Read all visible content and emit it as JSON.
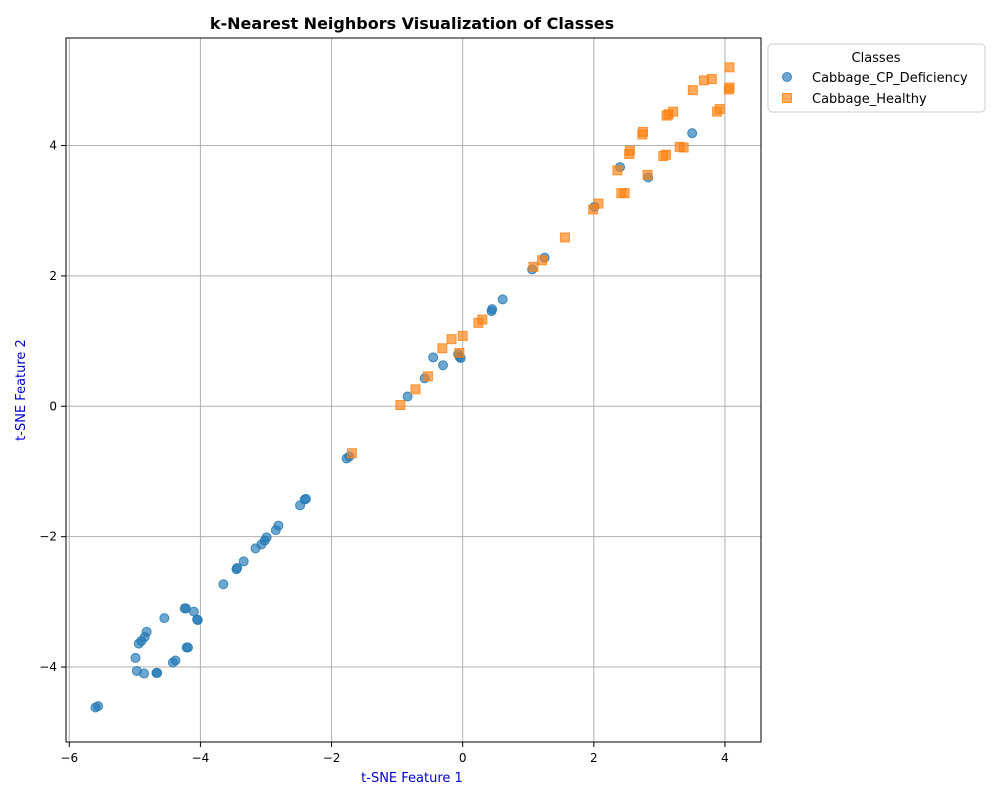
{
  "chart_data": {
    "type": "scatter",
    "title": "k-Nearest Neighbors Visualization of Classes",
    "xlabel": "t-SNE Feature 1",
    "ylabel": "t-SNE Feature 2",
    "xlim": [
      -6.05,
      4.55
    ],
    "ylim": [
      -5.15,
      5.65
    ],
    "xticks": [
      -6,
      -4,
      -2,
      0,
      2,
      4
    ],
    "yticks": [
      -4,
      -2,
      0,
      2,
      4
    ],
    "grid": true,
    "legend": {
      "title": "Classes",
      "placement": "outside upper-right"
    },
    "series": [
      {
        "name": "Cabbage_CP_Deficiency",
        "marker": "circle",
        "color": "#1f77b4",
        "points": [
          [
            -5.6,
            -4.62
          ],
          [
            -5.56,
            -4.6
          ],
          [
            -4.99,
            -3.86
          ],
          [
            -4.97,
            -4.06
          ],
          [
            -4.94,
            -3.64
          ],
          [
            -4.9,
            -3.6
          ],
          [
            -4.86,
            -4.1
          ],
          [
            -4.85,
            -3.54
          ],
          [
            -4.82,
            -3.46
          ],
          [
            -4.67,
            -4.09
          ],
          [
            -4.66,
            -4.09
          ],
          [
            -4.55,
            -3.25
          ],
          [
            -4.42,
            -3.93
          ],
          [
            -4.38,
            -3.9
          ],
          [
            -4.24,
            -3.1
          ],
          [
            -4.22,
            -3.1
          ],
          [
            -4.21,
            -3.7
          ],
          [
            -4.19,
            -3.7
          ],
          [
            -4.1,
            -3.15
          ],
          [
            -4.05,
            -3.27
          ],
          [
            -4.04,
            -3.28
          ],
          [
            -3.65,
            -2.73
          ],
          [
            -3.45,
            -2.5
          ],
          [
            -3.44,
            -2.48
          ],
          [
            -3.34,
            -2.38
          ],
          [
            -3.16,
            -2.18
          ],
          [
            -3.07,
            -2.12
          ],
          [
            -3.02,
            -2.06
          ],
          [
            -2.99,
            -2.01
          ],
          [
            -2.85,
            -1.9
          ],
          [
            -2.81,
            -1.83
          ],
          [
            -2.48,
            -1.52
          ],
          [
            -2.41,
            -1.43
          ],
          [
            -2.39,
            -1.42
          ],
          [
            -1.77,
            -0.8
          ],
          [
            -1.73,
            -0.77
          ],
          [
            -0.84,
            0.15
          ],
          [
            -0.58,
            0.43
          ],
          [
            -0.45,
            0.75
          ],
          [
            -0.3,
            0.63
          ],
          [
            -0.07,
            0.8
          ],
          [
            -0.05,
            0.76
          ],
          [
            -0.03,
            0.74
          ],
          [
            0.44,
            1.46
          ],
          [
            0.45,
            1.49
          ],
          [
            0.61,
            1.64
          ],
          [
            1.06,
            2.1
          ],
          [
            1.25,
            2.28
          ],
          [
            2.01,
            3.06
          ],
          [
            2.4,
            3.67
          ],
          [
            2.83,
            3.51
          ],
          [
            3.5,
            4.19
          ]
        ]
      },
      {
        "name": "Cabbage_Healthy",
        "marker": "square",
        "color": "#ff7f0e",
        "points": [
          [
            -1.69,
            -0.72
          ],
          [
            -0.95,
            0.02
          ],
          [
            -0.72,
            0.26
          ],
          [
            -0.53,
            0.46
          ],
          [
            -0.31,
            0.89
          ],
          [
            -0.17,
            1.03
          ],
          [
            -0.05,
            0.82
          ],
          [
            0.0,
            1.08
          ],
          [
            0.24,
            1.28
          ],
          [
            0.3,
            1.33
          ],
          [
            1.08,
            2.14
          ],
          [
            1.21,
            2.24
          ],
          [
            1.56,
            2.59
          ],
          [
            1.99,
            3.02
          ],
          [
            2.07,
            3.11
          ],
          [
            2.36,
            3.62
          ],
          [
            2.42,
            3.27
          ],
          [
            2.47,
            3.27
          ],
          [
            2.54,
            3.87
          ],
          [
            2.55,
            3.92
          ],
          [
            2.74,
            4.17
          ],
          [
            2.75,
            4.21
          ],
          [
            2.82,
            3.55
          ],
          [
            3.06,
            3.84
          ],
          [
            3.1,
            3.86
          ],
          [
            3.11,
            4.46
          ],
          [
            3.14,
            4.48
          ],
          [
            3.21,
            4.52
          ],
          [
            3.31,
            3.98
          ],
          [
            3.37,
            3.97
          ],
          [
            3.51,
            4.85
          ],
          [
            3.68,
            5.0
          ],
          [
            3.8,
            5.02
          ],
          [
            3.88,
            4.52
          ],
          [
            3.92,
            4.56
          ],
          [
            4.06,
            4.86
          ],
          [
            4.07,
            4.89
          ],
          [
            4.07,
            5.2
          ]
        ]
      }
    ]
  }
}
